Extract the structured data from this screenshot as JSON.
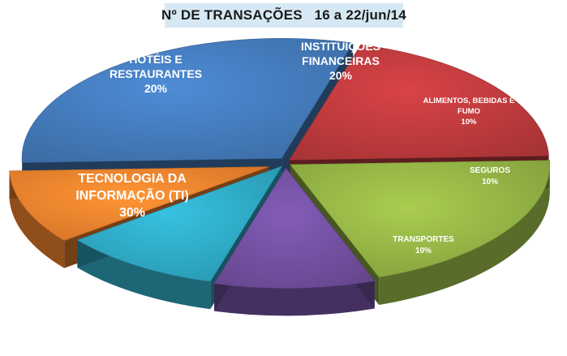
{
  "chart_data": {
    "type": "pie",
    "title": "Nº DE TRANSAÇÕES   16 a 22/jun/14",
    "slices": [
      {
        "label_lines": [
          "TECNOLOGIA DA",
          "INFORMAÇÃO (TI)"
        ],
        "percent_label": "30%",
        "value": 30,
        "color": "#4277b5"
      },
      {
        "label_lines": [
          "HOTÉIS E",
          "RESTAURANTES"
        ],
        "percent_label": "20%",
        "value": 20,
        "color": "#b8393b"
      },
      {
        "label_lines": [
          "INSTITUIÇÕES",
          "FINANCEIRAS"
        ],
        "percent_label": "20%",
        "value": 20,
        "color": "#8fae43"
      },
      {
        "label_lines": [
          "ALIMENTOS, BEBIDAS E",
          "FUMO"
        ],
        "percent_label": "10%",
        "value": 10,
        "color": "#6f4e9c"
      },
      {
        "label_lines": [
          "SEGUROS"
        ],
        "percent_label": "10%",
        "value": 10,
        "color": "#2ea4bf"
      },
      {
        "label_lines": [
          "TRANSPORTES"
        ],
        "percent_label": "10%",
        "value": 10,
        "color": "#e97e2c"
      }
    ],
    "exploded": true,
    "style": "3d",
    "legend": "none"
  }
}
